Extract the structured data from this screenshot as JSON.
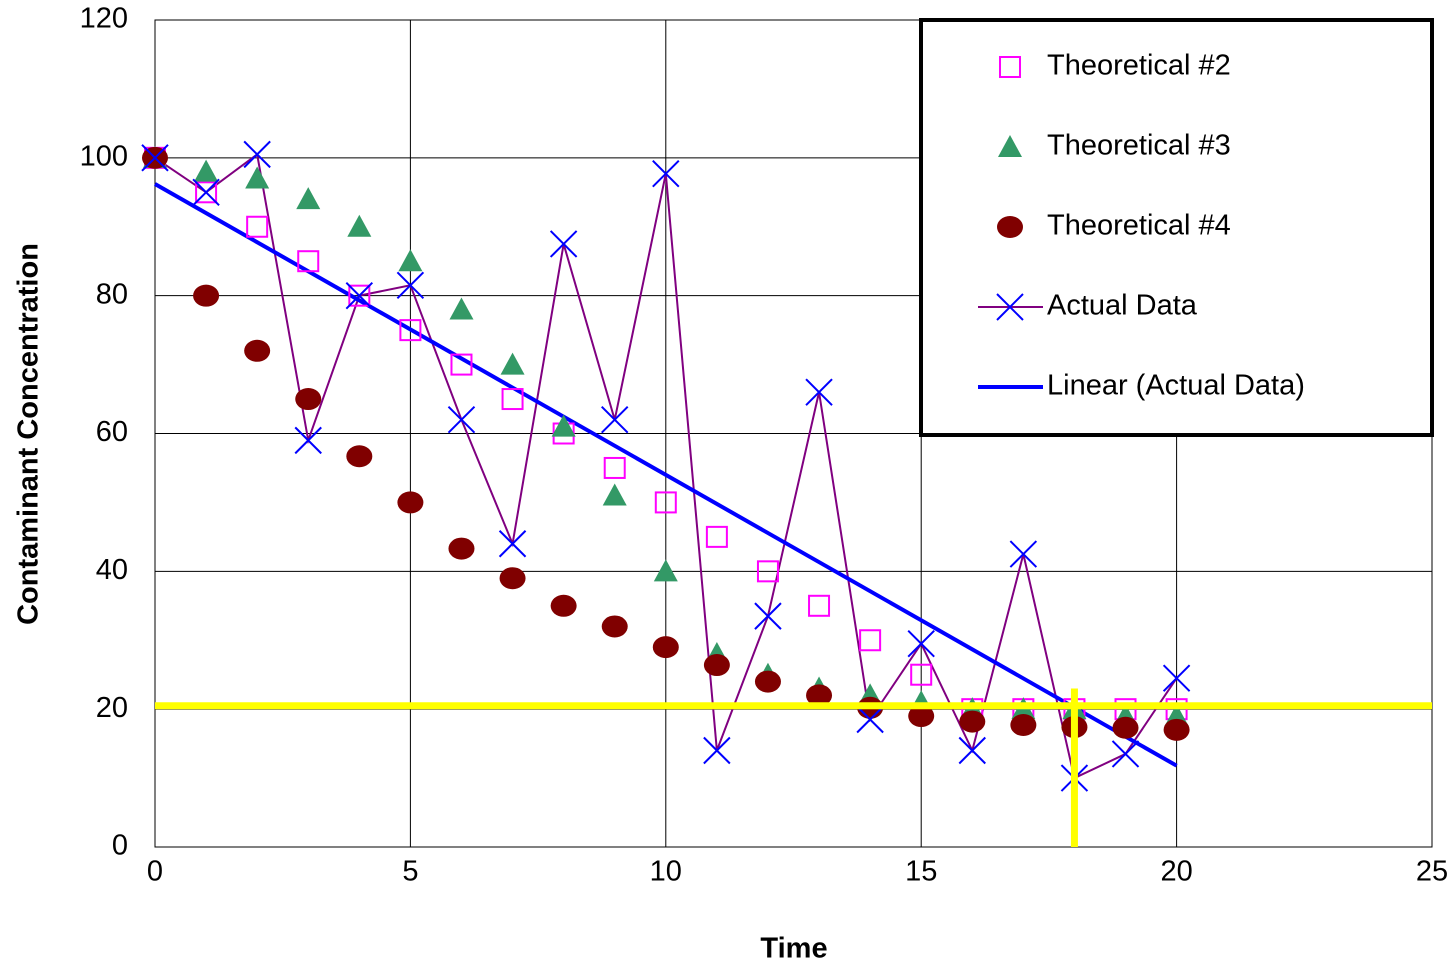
{
  "chart_data": {
    "type": "scatter",
    "xlabel": "Time",
    "ylabel": "Contaminant Concentration",
    "xlim": [
      0,
      25
    ],
    "xticks": [
      0,
      5,
      10,
      15,
      20,
      25
    ],
    "ylim": [
      0,
      120
    ],
    "yticks": [
      0,
      20,
      40,
      60,
      80,
      100,
      120
    ],
    "grid": true,
    "legend": "upper right",
    "series": [
      {
        "name": "Theoretical #2",
        "marker": "square",
        "color": "#ff00ff",
        "x": [
          0,
          1,
          2,
          3,
          4,
          5,
          6,
          7,
          8,
          9,
          10,
          11,
          12,
          13,
          14,
          15,
          16,
          17,
          18,
          19,
          20
        ],
        "values": [
          100,
          95,
          90,
          85,
          80,
          75,
          70,
          65,
          60,
          55,
          50,
          45,
          40,
          35,
          30,
          25,
          20,
          20,
          20,
          20,
          20
        ]
      },
      {
        "name": "Theoretical #3",
        "marker": "triangle",
        "color": "#339966",
        "x": [
          0,
          1,
          2,
          3,
          4,
          5,
          6,
          7,
          8,
          9,
          10,
          11,
          12,
          13,
          14,
          15,
          16,
          17,
          18,
          19,
          20
        ],
        "values": [
          100,
          98,
          97,
          94,
          90,
          85,
          78,
          70,
          61,
          51,
          40,
          28,
          25,
          23,
          22,
          21,
          20,
          20,
          20,
          19,
          19
        ]
      },
      {
        "name": "Theoretical #4",
        "marker": "circle",
        "color": "#800000",
        "x": [
          0,
          1,
          2,
          3,
          4,
          5,
          6,
          7,
          8,
          9,
          10,
          11,
          12,
          13,
          14,
          15,
          16,
          17,
          18,
          19,
          20
        ],
        "values": [
          100,
          80,
          72,
          65,
          56.7,
          50,
          43.3,
          39,
          35,
          32,
          29,
          26.4,
          24,
          22,
          20.2,
          19,
          18.2,
          17.7,
          17.4,
          17.3,
          17
        ]
      },
      {
        "name": "Actual Data",
        "marker": "x",
        "color": "#800080",
        "marker_color": "#0000ff",
        "line": true,
        "x": [
          0,
          1,
          2,
          3,
          4,
          5,
          6,
          7,
          8,
          9,
          10,
          11,
          12,
          13,
          14,
          15,
          16,
          17,
          18,
          19,
          20
        ],
        "values": [
          100,
          95,
          100.5,
          59,
          80,
          81.5,
          62,
          44,
          87.5,
          62,
          97.7,
          14,
          33.5,
          66,
          18.5,
          29.5,
          14,
          42.5,
          10,
          13.5,
          24.5
        ]
      },
      {
        "name": "Linear (Actual Data)",
        "marker": "none",
        "color": "#0000ff",
        "line": true,
        "x": [
          0,
          20
        ],
        "values": [
          96.2,
          11.8
        ]
      }
    ],
    "hlines": [
      {
        "y": 20.5,
        "color": "#ffff00"
      }
    ],
    "vlines": [
      {
        "x": 18,
        "y": [
          0,
          23
        ],
        "color": "#ffff00"
      }
    ]
  }
}
